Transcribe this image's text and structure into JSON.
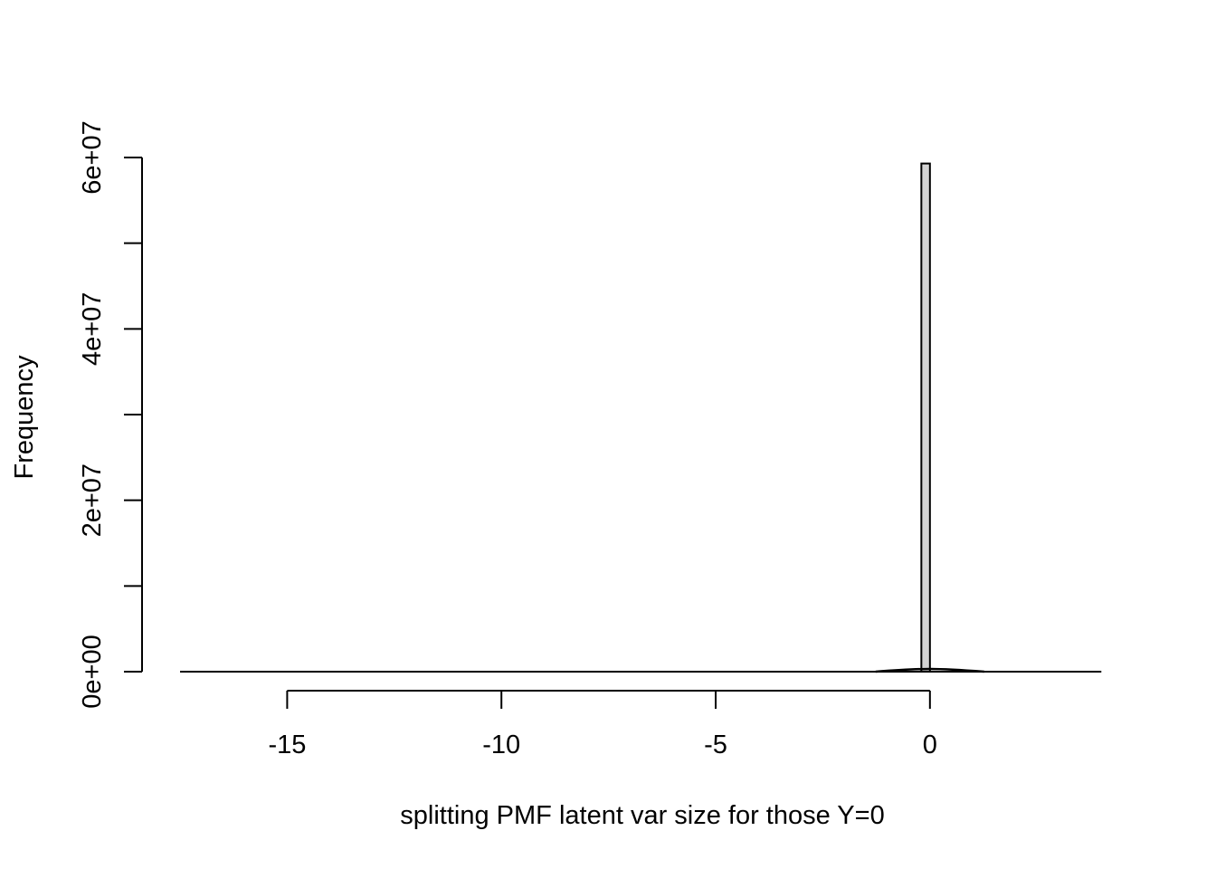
{
  "chart_data": {
    "type": "bar",
    "title": "",
    "xlabel": "splitting PMF latent var size for those Y=0",
    "ylabel": "Frequency",
    "xlim": [
      -17.5,
      4.1
    ],
    "ylim": [
      0,
      60000000
    ],
    "x_ticks": [
      -15,
      -10,
      -5,
      0
    ],
    "x_tick_labels": [
      "-15",
      "-10",
      "-5",
      "0"
    ],
    "y_ticks": [
      0,
      10000000,
      20000000,
      30000000,
      40000000,
      50000000,
      60000000
    ],
    "y_tick_labels": [
      "0e+00",
      "",
      "2e+07",
      "",
      "4e+07",
      "",
      "6e+07"
    ],
    "bins": [
      {
        "x_start": -0.2,
        "x_end": 0.0,
        "value": 59300000
      }
    ],
    "baseline_range": [
      -17.5,
      4.0
    ],
    "bar_fill": "#d3d3d3",
    "bar_stroke": "#000000",
    "grid": false
  }
}
